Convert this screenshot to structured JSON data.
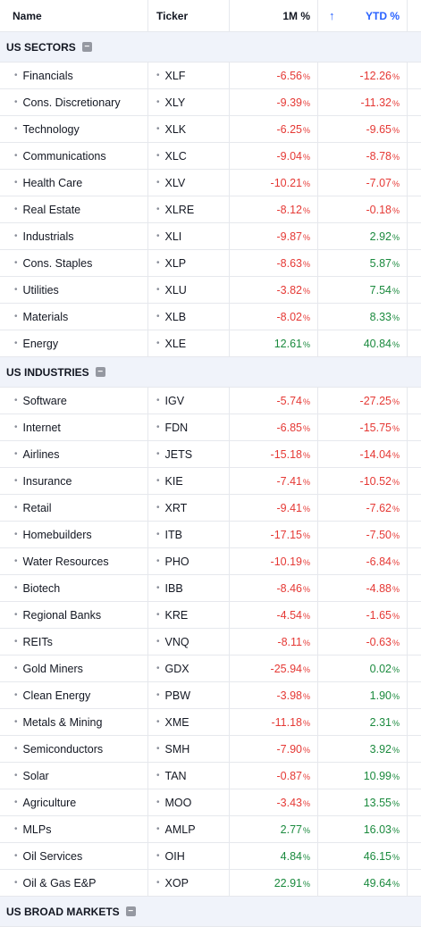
{
  "header": {
    "name": "Name",
    "ticker": "Ticker",
    "m1": "1M %",
    "sort_icon": "↑",
    "ytd": "YTD %"
  },
  "percent_sign": "%",
  "collapse_glyph": "−",
  "colors": {
    "negative": "#e53935",
    "positive": "#1b8a3e",
    "accent": "#2962ff",
    "section_bg": "#f0f3fa"
  },
  "sections": [
    {
      "title": "US SECTORS",
      "rows": [
        {
          "name": "Financials",
          "ticker": "XLF",
          "m1": "-6.56",
          "ytd": "-12.26"
        },
        {
          "name": "Cons. Discretionary",
          "ticker": "XLY",
          "m1": "-9.39",
          "ytd": "-11.32"
        },
        {
          "name": "Technology",
          "ticker": "XLK",
          "m1": "-6.25",
          "ytd": "-9.65"
        },
        {
          "name": "Communications",
          "ticker": "XLC",
          "m1": "-9.04",
          "ytd": "-8.78"
        },
        {
          "name": "Health Care",
          "ticker": "XLV",
          "m1": "-10.21",
          "ytd": "-7.07"
        },
        {
          "name": "Real Estate",
          "ticker": "XLRE",
          "m1": "-8.12",
          "ytd": "-0.18"
        },
        {
          "name": "Industrials",
          "ticker": "XLI",
          "m1": "-9.87",
          "ytd": "2.92"
        },
        {
          "name": "Cons. Staples",
          "ticker": "XLP",
          "m1": "-8.63",
          "ytd": "5.87"
        },
        {
          "name": "Utilities",
          "ticker": "XLU",
          "m1": "-3.82",
          "ytd": "7.54"
        },
        {
          "name": "Materials",
          "ticker": "XLB",
          "m1": "-8.02",
          "ytd": "8.33"
        },
        {
          "name": "Energy",
          "ticker": "XLE",
          "m1": "12.61",
          "ytd": "40.84"
        }
      ]
    },
    {
      "title": "US INDUSTRIES",
      "rows": [
        {
          "name": "Software",
          "ticker": "IGV",
          "m1": "-5.74",
          "ytd": "-27.25"
        },
        {
          "name": "Internet",
          "ticker": "FDN",
          "m1": "-6.85",
          "ytd": "-15.75"
        },
        {
          "name": "Airlines",
          "ticker": "JETS",
          "m1": "-15.18",
          "ytd": "-14.04"
        },
        {
          "name": "Insurance",
          "ticker": "KIE",
          "m1": "-7.41",
          "ytd": "-10.52"
        },
        {
          "name": "Retail",
          "ticker": "XRT",
          "m1": "-9.41",
          "ytd": "-7.62"
        },
        {
          "name": "Homebuilders",
          "ticker": "ITB",
          "m1": "-17.15",
          "ytd": "-7.50"
        },
        {
          "name": "Water Resources",
          "ticker": "PHO",
          "m1": "-10.19",
          "ytd": "-6.84"
        },
        {
          "name": "Biotech",
          "ticker": "IBB",
          "m1": "-8.46",
          "ytd": "-4.88"
        },
        {
          "name": "Regional Banks",
          "ticker": "KRE",
          "m1": "-4.54",
          "ytd": "-1.65"
        },
        {
          "name": "REITs",
          "ticker": "VNQ",
          "m1": "-8.11",
          "ytd": "-0.63"
        },
        {
          "name": "Gold Miners",
          "ticker": "GDX",
          "m1": "-25.94",
          "ytd": "0.02"
        },
        {
          "name": "Clean Energy",
          "ticker": "PBW",
          "m1": "-3.98",
          "ytd": "1.90"
        },
        {
          "name": "Metals & Mining",
          "ticker": "XME",
          "m1": "-11.18",
          "ytd": "2.31"
        },
        {
          "name": "Semiconductors",
          "ticker": "SMH",
          "m1": "-7.90",
          "ytd": "3.92"
        },
        {
          "name": "Solar",
          "ticker": "TAN",
          "m1": "-0.87",
          "ytd": "10.99"
        },
        {
          "name": "Agriculture",
          "ticker": "MOO",
          "m1": "-3.43",
          "ytd": "13.55"
        },
        {
          "name": "MLPs",
          "ticker": "AMLP",
          "m1": "2.77",
          "ytd": "16.03"
        },
        {
          "name": "Oil Services",
          "ticker": "OIH",
          "m1": "4.84",
          "ytd": "46.15"
        },
        {
          "name": "Oil & Gas E&P",
          "ticker": "XOP",
          "m1": "22.91",
          "ytd": "49.64"
        }
      ]
    },
    {
      "title": "US BROAD MARKETS",
      "rows": []
    }
  ]
}
